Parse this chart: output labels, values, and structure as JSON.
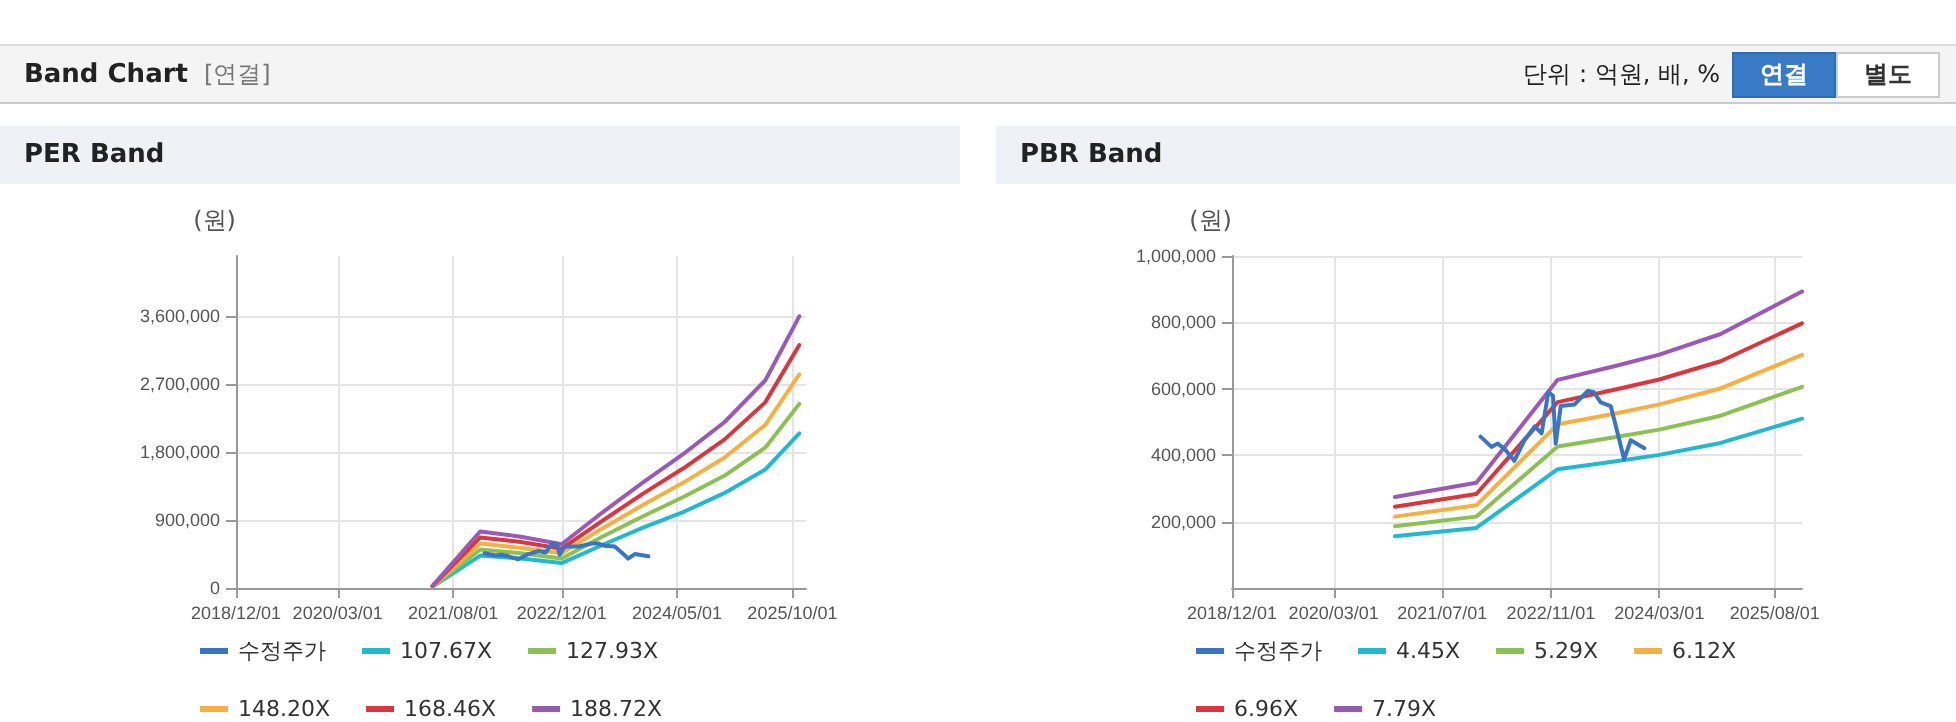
{
  "chart_data": [
    {
      "type": "other",
      "title": "Band Chart",
      "subtitle": "[연결]",
      "annotations": [
        "단위 : 억원, 배, %",
        "연결",
        "별도"
      ]
    },
    {
      "type": "line",
      "title": "PER Band",
      "ylabel": "(원)",
      "grid": true,
      "legend": "bottom",
      "marker": "none",
      "line_style": "solid",
      "x": [
        "2021-05-01",
        "2021-12-01",
        "2022-06-01",
        "2022-12-01",
        "2023-06-01",
        "2023-12-01",
        "2024-06-01",
        "2024-12-01",
        "2025-06-01",
        "2025-11-01"
      ],
      "xlim": [
        "2018-12-01",
        "2025-12-01"
      ],
      "xticks": [
        {
          "value": "2018-12-01",
          "label": "2018/12/01"
        },
        {
          "value": "2020-03-01",
          "label": "2020/03/01"
        },
        {
          "value": "2021-08-01",
          "label": "2021/08/01"
        },
        {
          "value": "2022-12-01",
          "label": "2022/12/01"
        },
        {
          "value": "2024-05-01",
          "label": "2024/05/01"
        },
        {
          "value": "2025-10-01",
          "label": "2025/10/01"
        }
      ],
      "ylim": [
        0,
        4400000
      ],
      "yticks": [
        0,
        {
          "value": 900000,
          "label": "900,000"
        },
        {
          "value": 1800000,
          "label": "1,800,000"
        },
        {
          "value": 2700000,
          "label": "2,700,000"
        },
        {
          "value": 3600000,
          "label": "3,600,000"
        }
      ],
      "series": [
        {
          "name": "수정주가",
          "color": "#3a75c4",
          "x": [
            "2021-12-20",
            "2022-02-07",
            "2022-03-07",
            "2022-04-07",
            "2022-05-20",
            "2022-07-05",
            "2022-08-20",
            "2022-09-20",
            "2022-10-20",
            "2022-11-10",
            "2022-11-22",
            "2022-12-15",
            "2023-02-15",
            "2023-04-15",
            "2023-05-12",
            "2023-06-12",
            "2023-07-27",
            "2023-08-27",
            "2023-09-25",
            "2023-10-25",
            "2023-12-25"
          ],
          "values": [
            460000,
            430000,
            440000,
            420000,
            380000,
            450000,
            490000,
            470000,
            590000,
            580000,
            440000,
            550000,
            550000,
            590000,
            590000,
            560000,
            550000,
            470000,
            390000,
            450000,
            420000
          ]
        },
        {
          "name": "107.67X",
          "color": "#22b8cf",
          "values": [
            20000,
            430000,
            390000,
            330000,
            570000,
            800000,
            1010000,
            1260000,
            1570000,
            2050000
          ]
        },
        {
          "name": "127.93X",
          "color": "#8cc152",
          "values": [
            20000,
            510000,
            460000,
            390000,
            680000,
            950000,
            1210000,
            1490000,
            1860000,
            2440000
          ]
        },
        {
          "name": "148.20X",
          "color": "#f6b042",
          "values": [
            20000,
            590000,
            530000,
            460000,
            790000,
            1100000,
            1400000,
            1730000,
            2160000,
            2830000
          ]
        },
        {
          "name": "168.46X",
          "color": "#d9363e",
          "values": [
            30000,
            670000,
            610000,
            520000,
            890000,
            1250000,
            1590000,
            1970000,
            2460000,
            3220000
          ]
        },
        {
          "name": "188.72X",
          "color": "#9b59b6",
          "values": [
            30000,
            750000,
            680000,
            580000,
            1000000,
            1400000,
            1780000,
            2200000,
            2750000,
            3600000
          ]
        }
      ]
    },
    {
      "type": "line",
      "title": "PBR Band",
      "ylabel": "(원)",
      "grid": true,
      "legend": "bottom",
      "marker": "none",
      "line_style": "solid",
      "x": [
        "2020-12-01",
        "2021-12-01",
        "2022-12-01",
        "2023-08-12",
        "2024-03-01",
        "2024-12-01",
        "2025-12-01"
      ],
      "xlim": [
        "2018-12-01",
        "2025-12-01"
      ],
      "xticks": [
        {
          "value": "2018-12-01",
          "label": "2018/12/01"
        },
        {
          "value": "2020-03-01",
          "label": "2020/03/01"
        },
        {
          "value": "2021-07-01",
          "label": "2021/07/01"
        },
        {
          "value": "2022-11-01",
          "label": "2022/11/01"
        },
        {
          "value": "2024-03-01",
          "label": "2024/03/01"
        },
        {
          "value": "2025-08-01",
          "label": "2025/08/01"
        }
      ],
      "ylim": [
        0,
        1000000
      ],
      "yticks": [
        {
          "value": 200000,
          "label": "200,000"
        },
        {
          "value": 400000,
          "label": "400,000"
        },
        {
          "value": 600000,
          "label": "600,000"
        },
        {
          "value": 800000,
          "label": "800,000"
        },
        {
          "value": 1000000,
          "label": "1,000,000"
        }
      ],
      "series": [
        {
          "name": "수정주가",
          "color": "#3a75c4",
          "x": [
            "2021-12-20",
            "2022-02-07",
            "2022-03-07",
            "2022-04-07",
            "2022-05-20",
            "2022-07-05",
            "2022-08-20",
            "2022-09-20",
            "2022-10-20",
            "2022-11-10",
            "2022-11-22",
            "2022-12-15",
            "2023-02-15",
            "2023-04-15",
            "2023-05-12",
            "2023-06-12",
            "2023-07-27",
            "2023-08-27",
            "2023-09-25",
            "2023-10-25",
            "2023-12-25"
          ],
          "values": [
            456000,
            425000,
            435000,
            419000,
            383000,
            445000,
            487000,
            466000,
            590000,
            579000,
            435000,
            548000,
            553000,
            594000,
            590000,
            559000,
            548000,
            466000,
            388000,
            445000,
            421000
          ]
        },
        {
          "name": "4.45X",
          "color": "#22b8cf",
          "values": [
            156000,
            181000,
            358000,
            381000,
            401000,
            437000,
            510000
          ]
        },
        {
          "name": "5.29X",
          "color": "#8cc152",
          "values": [
            186000,
            215000,
            426000,
            454000,
            477000,
            519000,
            606000
          ]
        },
        {
          "name": "6.12X",
          "color": "#f6b042",
          "values": [
            215000,
            249000,
            493000,
            525000,
            553000,
            601000,
            702000
          ]
        },
        {
          "name": "6.96X",
          "color": "#d9363e",
          "values": [
            245000,
            283000,
            560000,
            597000,
            628000,
            683000,
            797000
          ]
        },
        {
          "name": "7.79X",
          "color": "#9b59b6",
          "values": [
            274000,
            317000,
            627000,
            668000,
            703000,
            765000,
            893000
          ]
        }
      ]
    }
  ]
}
